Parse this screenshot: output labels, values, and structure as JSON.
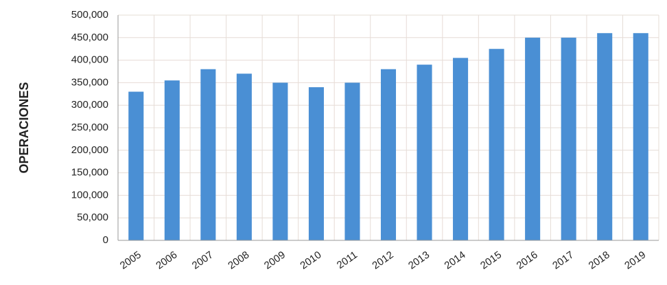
{
  "chart_data": {
    "type": "bar",
    "y_label": "OPERACIONES",
    "categories": [
      "2005",
      "2006",
      "2007",
      "2008",
      "2009",
      "2010",
      "2011",
      "2012",
      "2013",
      "2014",
      "2015",
      "2016",
      "2017",
      "2018",
      "2019"
    ],
    "values": [
      330000,
      355000,
      380000,
      370000,
      350000,
      340000,
      350000,
      380000,
      390000,
      405000,
      425000,
      450000,
      450000,
      460000,
      460000
    ],
    "color": "#4a8fd4",
    "ylim": [
      0,
      500000
    ],
    "yticks": [
      0,
      {
        "value": 50000,
        "label": "50,000"
      },
      {
        "value": 100000,
        "label": "100,000"
      },
      {
        "value": 150000,
        "label": "150,000"
      },
      {
        "value": 200000,
        "label": "200,000"
      },
      {
        "value": 250000,
        "label": "250,000"
      },
      {
        "value": 300000,
        "label": "300,000"
      },
      {
        "value": 350000,
        "label": "350,000"
      },
      {
        "value": 400000,
        "label": "400,000"
      },
      {
        "value": 450000,
        "label": "450,000"
      },
      {
        "value": 500000,
        "label": "500,000"
      }
    ],
    "grid": true
  }
}
